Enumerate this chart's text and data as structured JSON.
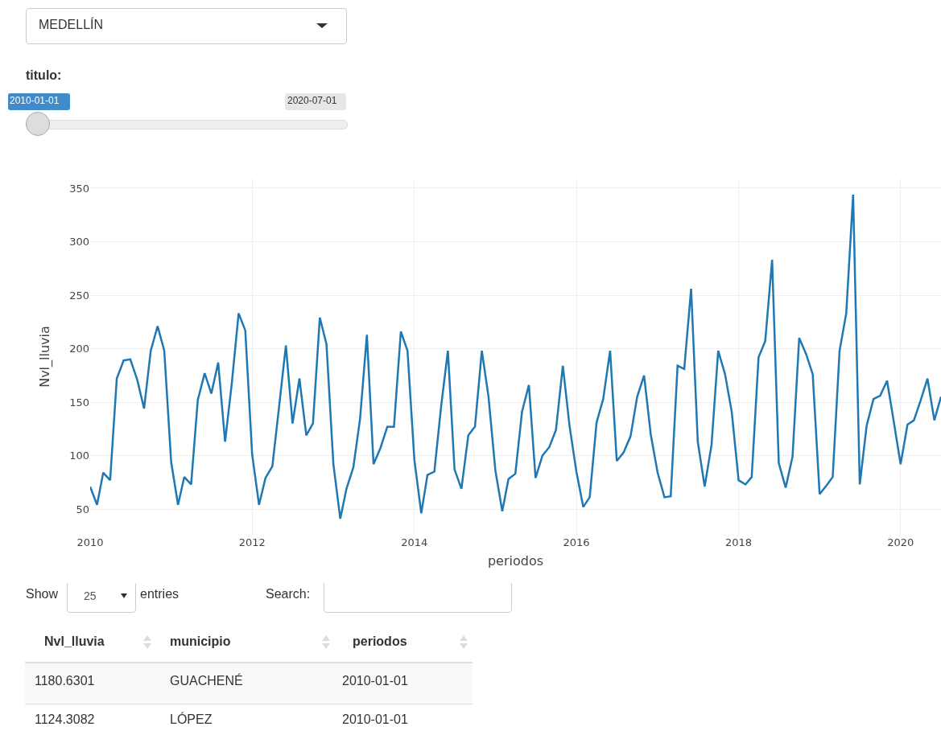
{
  "chart_data": [
    {
      "type": "line",
      "xlabel": "periodos",
      "ylabel": "Nvl_lluvia",
      "x": [
        "2010-01",
        "2010-02",
        "2010-03",
        "2010-04",
        "2010-05",
        "2010-06",
        "2010-07",
        "2010-08",
        "2010-09",
        "2010-10",
        "2010-11",
        "2010-12",
        "2011-01",
        "2011-02",
        "2011-03",
        "2011-04",
        "2011-05",
        "2011-06",
        "2011-07",
        "2011-08",
        "2011-09",
        "2011-10",
        "2011-11",
        "2011-12",
        "2012-01",
        "2012-02",
        "2012-03",
        "2012-04",
        "2012-05",
        "2012-06",
        "2012-07",
        "2012-08",
        "2012-09",
        "2012-10",
        "2012-11",
        "2012-12",
        "2013-01",
        "2013-02",
        "2013-03",
        "2013-04",
        "2013-05",
        "2013-06",
        "2013-07",
        "2013-08",
        "2013-09",
        "2013-10",
        "2013-11",
        "2013-12",
        "2014-01",
        "2014-02",
        "2014-03",
        "2014-04",
        "2014-05",
        "2014-06",
        "2014-07",
        "2014-08",
        "2014-09",
        "2014-10",
        "2014-11",
        "2014-12",
        "2015-01",
        "2015-02",
        "2015-03",
        "2015-04",
        "2015-05",
        "2015-06",
        "2015-07",
        "2015-08",
        "2015-09",
        "2015-10",
        "2015-11",
        "2015-12",
        "2016-01",
        "2016-02",
        "2016-03",
        "2016-04",
        "2016-05",
        "2016-06",
        "2016-07",
        "2016-08",
        "2016-09",
        "2016-10",
        "2016-11",
        "2016-12",
        "2017-01",
        "2017-02",
        "2017-03",
        "2017-04",
        "2017-05",
        "2017-06",
        "2017-07",
        "2017-08",
        "2017-09",
        "2017-10",
        "2017-11",
        "2017-12",
        "2018-01",
        "2018-02",
        "2018-03",
        "2018-04",
        "2018-05",
        "2018-06",
        "2018-07",
        "2018-08",
        "2018-09",
        "2018-10",
        "2018-11",
        "2018-12",
        "2019-01",
        "2019-02",
        "2019-03",
        "2019-04",
        "2019-05",
        "2019-06",
        "2019-07",
        "2019-08",
        "2019-09",
        "2019-10",
        "2019-11",
        "2019-12",
        "2020-01",
        "2020-02",
        "2020-03",
        "2020-04",
        "2020-05",
        "2020-06",
        "2020-07"
      ],
      "series": [
        {
          "color": "#1f77b4",
          "values": [
            71,
            54,
            84,
            77,
            172,
            189,
            190,
            171,
            144,
            198,
            221,
            198,
            94,
            54,
            80,
            73,
            152,
            177,
            158,
            187,
            113,
            167,
            233,
            217,
            101,
            54,
            79,
            90,
            145,
            203,
            130,
            172,
            119,
            130,
            229,
            204,
            92,
            41,
            69,
            89,
            134,
            213,
            92,
            107,
            127,
            127,
            216,
            198,
            96,
            46,
            82,
            85,
            145,
            198,
            87,
            69,
            119,
            127,
            198,
            155,
            86,
            48,
            78,
            83,
            141,
            166,
            79,
            100,
            108,
            124,
            184,
            128,
            85,
            52,
            61,
            131,
            153,
            198,
            95,
            103,
            118,
            155,
            175,
            120,
            84,
            61,
            62,
            184,
            181,
            256,
            113,
            71,
            110,
            198,
            176,
            141,
            77,
            73,
            80,
            192,
            207,
            283,
            93,
            70,
            99,
            210,
            195,
            176,
            64,
            72,
            80,
            198,
            233,
            344,
            73,
            128,
            153,
            156,
            170,
            132,
            92,
            129,
            133,
            152,
            172,
            133,
            155
          ]
        }
      ],
      "xlim": [
        "2010-01-01",
        "2020-07-01"
      ],
      "xticks": [
        {
          "value": "2010-01-01",
          "label": "2010"
        },
        {
          "value": "2012-01-01",
          "label": "2012"
        },
        {
          "value": "2014-01-01",
          "label": "2014"
        },
        {
          "value": "2016-01-01",
          "label": "2016"
        },
        {
          "value": "2018-01-01",
          "label": "2018"
        },
        {
          "value": "2020-01-01",
          "label": "2020"
        }
      ],
      "ylim": [
        26,
        359
      ],
      "yticks": [
        50,
        100,
        150,
        200,
        250,
        300,
        350
      ],
      "grid": true,
      "marker": "none",
      "line_style": "solid"
    },
    {
      "type": "other",
      "annotations": [
        "MEDELLÍN",
        "titulo:",
        "2010-01-01",
        "2020-07-01",
        "Show",
        "25",
        "entries",
        "Search:",
        "Nvl_lluvia",
        "municipio",
        "periodos",
        "1180.6301",
        "GUACHENÉ",
        "2010-01-01",
        "1124.3082",
        "LÓPEZ",
        "2010-01-01"
      ]
    }
  ]
}
